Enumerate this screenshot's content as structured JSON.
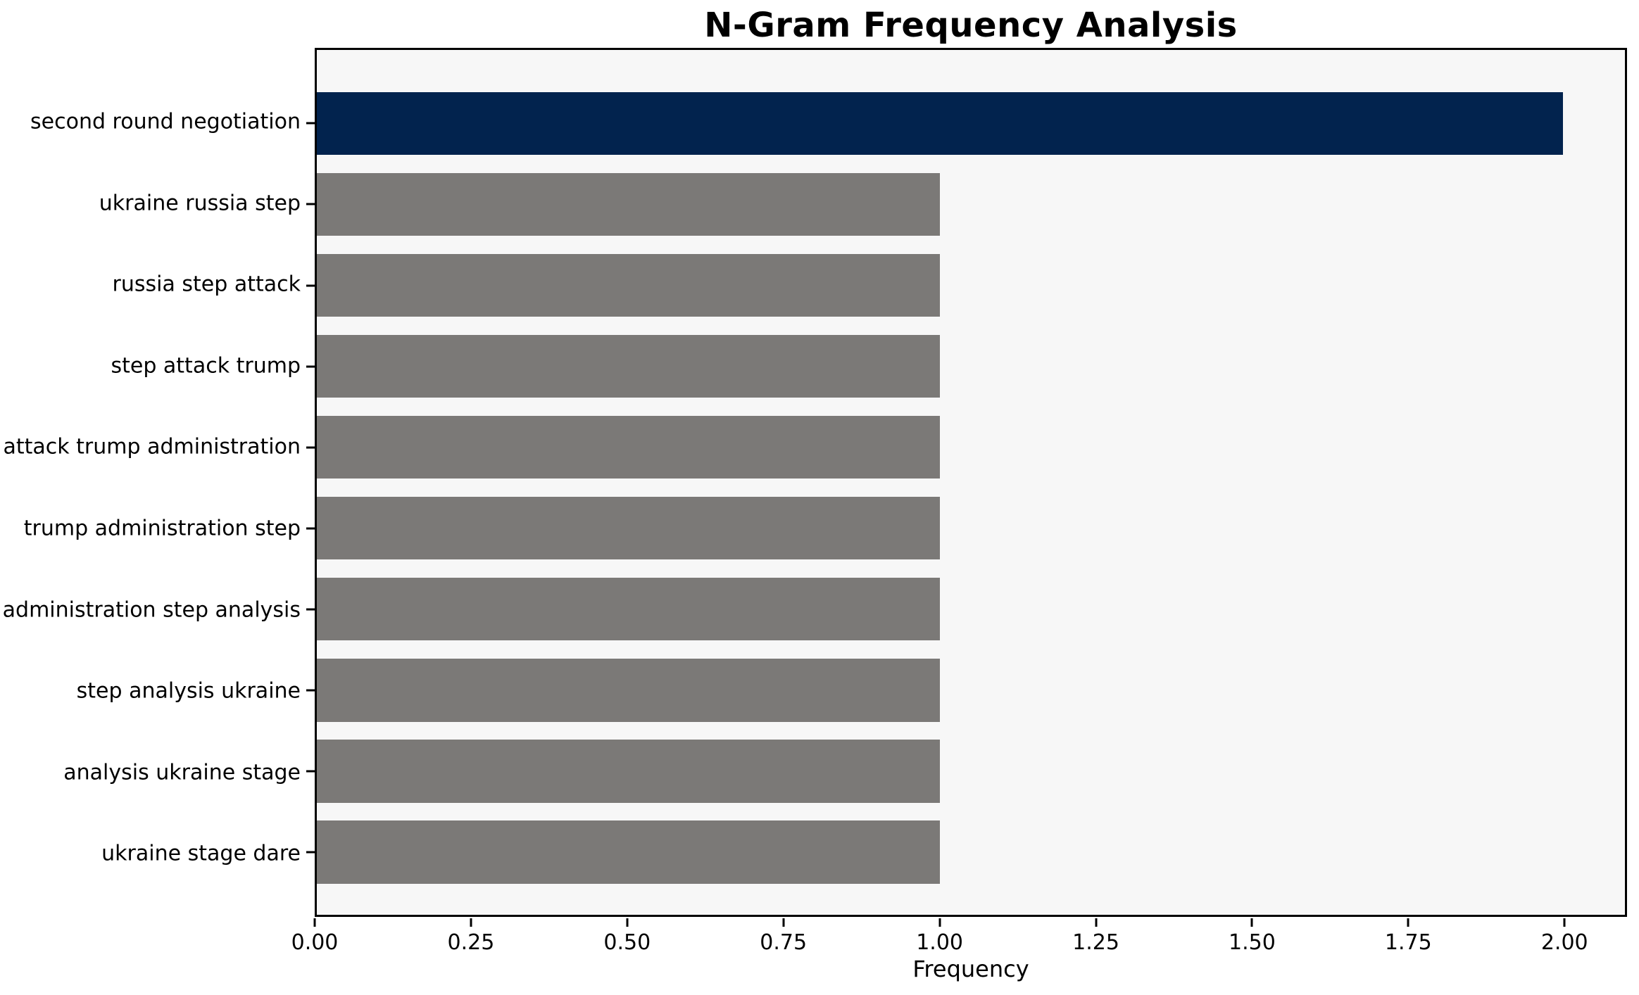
{
  "figure": {
    "title": "N-Gram Frequency Analysis"
  },
  "chart_data": {
    "type": "bar",
    "orientation": "horizontal",
    "title": "N-Gram Frequency Analysis",
    "xlabel": "Frequency",
    "ylabel": "",
    "categories": [
      "second round negotiation",
      "ukraine russia step",
      "russia step attack",
      "step attack trump",
      "attack trump administration",
      "trump administration step",
      "administration step analysis",
      "step analysis ukraine",
      "analysis ukraine stage",
      "ukraine stage dare"
    ],
    "values": [
      2,
      1,
      1,
      1,
      1,
      1,
      1,
      1,
      1,
      1
    ],
    "bar_colors": [
      "#02234e",
      "#7b7977",
      "#7b7977",
      "#7b7977",
      "#7b7977",
      "#7b7977",
      "#7b7977",
      "#7b7977",
      "#7b7977",
      "#7b7977"
    ],
    "xlim": [
      0,
      2.1
    ],
    "x_ticks": [
      0,
      0.25,
      0.5,
      0.75,
      1.0,
      1.25,
      1.5,
      1.75,
      2.0
    ],
    "x_tick_labels": [
      "0.00",
      "0.25",
      "0.50",
      "0.75",
      "1.00",
      "1.25",
      "1.50",
      "1.75",
      "2.00"
    ],
    "grid": false,
    "legend_position": "none",
    "colors": {
      "highlight_bar": "#02234e",
      "default_bar": "#7b7977",
      "plot_background": "#f7f7f7",
      "spine": "#000000",
      "text": "#000000"
    }
  }
}
